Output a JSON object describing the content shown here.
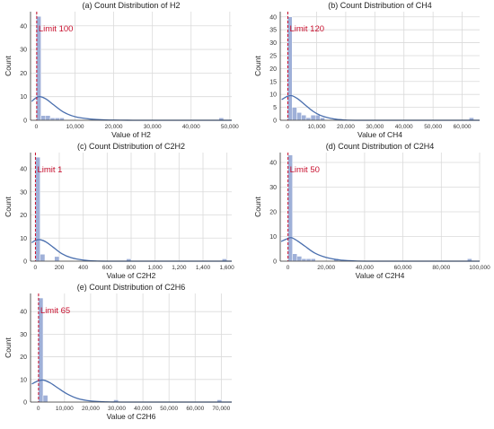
{
  "colors": {
    "bar": "#9fb0d8",
    "kde": "#4a6fae",
    "limit": "#c8102e",
    "grid": "#dadada",
    "axis": "#333333"
  },
  "chart_data": [
    {
      "type": "bar",
      "subtype": "histogram-with-kde",
      "title": "(a) Count Distribution of H2",
      "xlabel": "Value of H2",
      "ylabel": "Count",
      "xlim": [
        -1500,
        50500
      ],
      "ylim": [
        0,
        46
      ],
      "xticks": [
        0,
        10000,
        20000,
        30000,
        40000,
        50000
      ],
      "xtick_labels": [
        "0",
        "10,000",
        "20,000",
        "30,000",
        "40,000",
        "50,000"
      ],
      "yticks": [
        0,
        10,
        20,
        30,
        40
      ],
      "bins": [
        {
          "x0": 0,
          "x1": 1200,
          "count": 44
        },
        {
          "x0": 1200,
          "x1": 2400,
          "count": 2
        },
        {
          "x0": 2400,
          "x1": 3600,
          "count": 2
        },
        {
          "x0": 3600,
          "x1": 4800,
          "count": 1
        },
        {
          "x0": 4800,
          "x1": 6000,
          "count": 1
        },
        {
          "x0": 6000,
          "x1": 7200,
          "count": 1
        },
        {
          "x0": 47200,
          "x1": 48400,
          "count": 1
        }
      ],
      "kde": {
        "x": [
          -1200,
          0,
          1000,
          2500,
          4500,
          7000,
          10000,
          14000,
          18000,
          25000
        ],
        "y": [
          8,
          9.6,
          10,
          9,
          6.5,
          3.5,
          1.5,
          0.5,
          0.15,
          0
        ]
      },
      "limit": {
        "value": 100,
        "label": "Limit 100"
      },
      "grid": true
    },
    {
      "type": "bar",
      "subtype": "histogram-with-kde",
      "title": "(b) Count Distribution of CH4",
      "xlabel": "Value of CH4",
      "ylabel": "Count",
      "xlim": [
        -2500,
        66000
      ],
      "ylim": [
        0,
        42
      ],
      "xticks": [
        0,
        10000,
        20000,
        30000,
        40000,
        50000,
        60000
      ],
      "xtick_labels": [
        "0",
        "10,000",
        "20,000",
        "30,000",
        "40,000",
        "50,000",
        "60,000"
      ],
      "yticks": [
        0,
        5,
        10,
        15,
        20,
        25,
        30,
        35,
        40
      ],
      "bins": [
        {
          "x0": 0,
          "x1": 1600,
          "count": 40
        },
        {
          "x0": 1600,
          "x1": 3200,
          "count": 5
        },
        {
          "x0": 3200,
          "x1": 4800,
          "count": 3
        },
        {
          "x0": 4800,
          "x1": 6400,
          "count": 2
        },
        {
          "x0": 6400,
          "x1": 8000,
          "count": 1
        },
        {
          "x0": 8000,
          "x1": 9600,
          "count": 2
        },
        {
          "x0": 9600,
          "x1": 11200,
          "count": 2
        },
        {
          "x0": 11200,
          "x1": 12800,
          "count": 1
        },
        {
          "x0": 62400,
          "x1": 64000,
          "count": 1
        }
      ],
      "kde": {
        "x": [
          -2000,
          0,
          1500,
          3500,
          6000,
          9000,
          12000,
          16000,
          20000,
          26000
        ],
        "y": [
          8,
          9.3,
          9.5,
          8.3,
          6,
          3.3,
          1.6,
          0.5,
          0.1,
          0
        ]
      },
      "limit": {
        "value": 120,
        "label": "Limit 120"
      },
      "grid": true
    },
    {
      "type": "bar",
      "subtype": "histogram-with-kde",
      "title": "(c) Count Distribution of C2H2",
      "xlabel": "Value of C2H2",
      "ylabel": "Count",
      "xlim": [
        -40,
        1640
      ],
      "ylim": [
        0,
        47
      ],
      "xticks": [
        0,
        200,
        400,
        600,
        800,
        1000,
        1200,
        1400,
        1600
      ],
      "xtick_labels": [
        "0",
        "200",
        "400",
        "600",
        "800",
        "1,000",
        "1,200",
        "1,400",
        "1,600"
      ],
      "yticks": [
        0,
        10,
        20,
        30,
        40
      ],
      "bins": [
        {
          "x0": 0,
          "x1": 40,
          "count": 45
        },
        {
          "x0": 40,
          "x1": 80,
          "count": 3
        },
        {
          "x0": 160,
          "x1": 200,
          "count": 2
        },
        {
          "x0": 760,
          "x1": 800,
          "count": 1
        },
        {
          "x0": 1560,
          "x1": 1600,
          "count": 1
        }
      ],
      "kde": {
        "x": [
          -30,
          0,
          40,
          90,
          150,
          220,
          300,
          400,
          500,
          620
        ],
        "y": [
          8,
          9,
          9.3,
          8.3,
          6,
          3.3,
          1.5,
          0.5,
          0.1,
          0
        ]
      },
      "limit": {
        "value": 1,
        "label": "Limit 1"
      },
      "grid": true
    },
    {
      "type": "bar",
      "subtype": "histogram-with-kde",
      "title": "(d) Count Distribution of C2H4",
      "xlabel": "Value of C2H4",
      "ylabel": "Count",
      "xlim": [
        -4000,
        100000
      ],
      "ylim": [
        0,
        44
      ],
      "xticks": [
        0,
        20000,
        40000,
        60000,
        80000,
        100000
      ],
      "xtick_labels": [
        "0",
        "20,000",
        "40,000",
        "60,000",
        "80,000",
        "100,000"
      ],
      "yticks": [
        0,
        10,
        20,
        30,
        40
      ],
      "bins": [
        {
          "x0": 0,
          "x1": 2400,
          "count": 43
        },
        {
          "x0": 2400,
          "x1": 4800,
          "count": 3
        },
        {
          "x0": 4800,
          "x1": 7200,
          "count": 2
        },
        {
          "x0": 7200,
          "x1": 9600,
          "count": 1
        },
        {
          "x0": 9600,
          "x1": 12000,
          "count": 1
        },
        {
          "x0": 12000,
          "x1": 14400,
          "count": 1
        },
        {
          "x0": 24000,
          "x1": 26400,
          "count": 1
        },
        {
          "x0": 93600,
          "x1": 96000,
          "count": 1
        }
      ],
      "kde": {
        "x": [
          -3500,
          0,
          2000,
          5000,
          9000,
          14000,
          20000,
          27000,
          35000,
          44000
        ],
        "y": [
          8,
          9.2,
          9.5,
          8.2,
          6,
          3.3,
          1.5,
          0.5,
          0.1,
          0
        ]
      },
      "limit": {
        "value": 50,
        "label": "Limit 50"
      },
      "grid": true
    },
    {
      "type": "bar",
      "subtype": "histogram-with-kde",
      "title": "(e) Count Distribution of C2H6",
      "xlabel": "Value of C2H6",
      "ylabel": "Count",
      "xlim": [
        -3000,
        74000
      ],
      "ylim": [
        0,
        48
      ],
      "xticks": [
        0,
        10000,
        20000,
        30000,
        40000,
        50000,
        60000,
        70000
      ],
      "xtick_labels": [
        "0",
        "10,000",
        "20,000",
        "30,000",
        "40,000",
        "50,000",
        "60,000",
        "70,000"
      ],
      "yticks": [
        0,
        10,
        20,
        30,
        40
      ],
      "bins": [
        {
          "x0": 0,
          "x1": 1800,
          "count": 46
        },
        {
          "x0": 1800,
          "x1": 3600,
          "count": 3
        },
        {
          "x0": 28800,
          "x1": 30600,
          "count": 1
        },
        {
          "x0": 68400,
          "x1": 70200,
          "count": 1
        }
      ],
      "kde": {
        "x": [
          -2500,
          0,
          2000,
          4500,
          7500,
          11000,
          15000,
          20000,
          26000,
          33000
        ],
        "y": [
          8,
          9.4,
          9.7,
          8.5,
          6.2,
          3.6,
          1.6,
          0.5,
          0.1,
          0
        ]
      },
      "limit": {
        "value": 65,
        "label": "Limit 65"
      },
      "grid": true
    }
  ]
}
